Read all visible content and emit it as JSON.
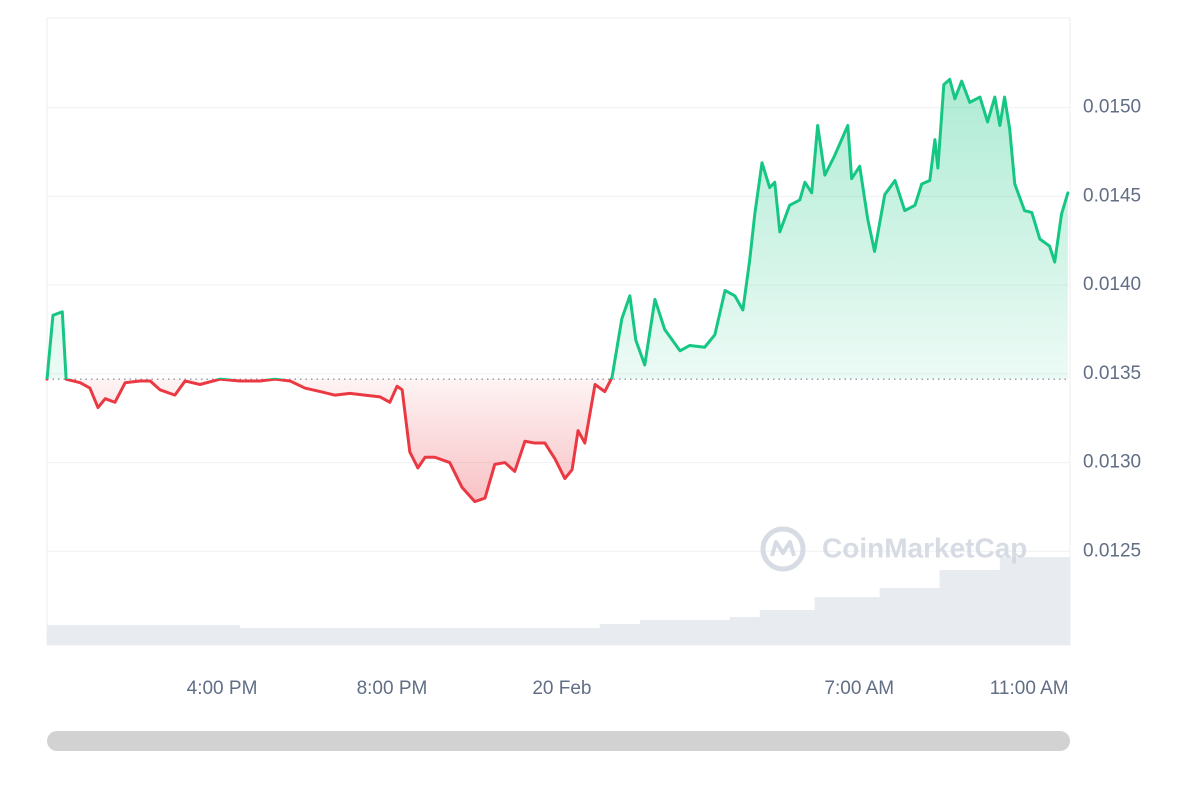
{
  "chart_data": {
    "type": "line",
    "watermark": "CoinMarketCap",
    "up_color": "#16c784",
    "down_color": "#ea3943",
    "baseline": 0.01347,
    "grid": true,
    "ylim": [
      0.012,
      0.0155
    ],
    "yticks": [
      0.0125,
      {
        "value": 0.013,
        "label": "0.0130"
      },
      0.0135,
      {
        "value": 0.014,
        "label": "0.0140"
      },
      0.0145,
      {
        "value": 0.015,
        "label": "0.0150"
      }
    ],
    "xlim": [
      -12.12,
      11.96
    ],
    "xticks": [
      {
        "value": -8,
        "label": "4:00 PM"
      },
      {
        "value": -4,
        "label": "8:00 PM"
      },
      {
        "value": 0,
        "label": "20 Feb"
      },
      {
        "value": 7,
        "label": "7:00 AM"
      },
      {
        "value": 11,
        "label": "11:00 AM"
      }
    ],
    "x": [
      -12.12,
      -11.98,
      -11.76,
      -11.67,
      -11.34,
      -11.11,
      -10.92,
      -10.75,
      -10.52,
      -10.28,
      -9.93,
      -9.69,
      -9.46,
      -9.11,
      -8.87,
      -8.52,
      -8.05,
      -7.58,
      -7.11,
      -6.75,
      -6.4,
      -6.05,
      -5.69,
      -5.34,
      -4.99,
      -4.64,
      -4.28,
      -4.05,
      -3.88,
      -3.76,
      -3.58,
      -3.39,
      -3.22,
      -2.99,
      -2.64,
      -2.35,
      -2.05,
      -1.81,
      -1.58,
      -1.34,
      -1.11,
      -0.87,
      -0.64,
      -0.4,
      -0.16,
      0.07,
      0.24,
      0.38,
      0.54,
      0.78,
      1.01,
      1.18,
      1.41,
      1.6,
      1.74,
      1.95,
      2.19,
      2.42,
      2.78,
      3.01,
      3.36,
      3.6,
      3.84,
      4.07,
      4.26,
      4.42,
      4.54,
      4.71,
      4.89,
      5.01,
      5.13,
      5.36,
      5.6,
      5.72,
      5.88,
      6.02,
      6.19,
      6.42,
      6.73,
      6.82,
      7.01,
      7.2,
      7.36,
      7.6,
      7.84,
      8.07,
      8.31,
      8.47,
      8.66,
      8.78,
      8.85,
      8.99,
      9.13,
      9.25,
      9.41,
      9.6,
      9.84,
      10.02,
      10.19,
      10.31,
      10.42,
      10.54,
      10.66,
      10.89,
      11.06,
      11.25,
      11.48,
      11.6,
      11.76,
      11.91
    ],
    "values": [
      0.01347,
      0.01383,
      0.01385,
      0.01347,
      0.01345,
      0.01342,
      0.01331,
      0.01336,
      0.01334,
      0.01345,
      0.01346,
      0.01346,
      0.01341,
      0.01338,
      0.01346,
      0.01344,
      0.01347,
      0.01346,
      0.01346,
      0.01347,
      0.01346,
      0.01342,
      0.0134,
      0.01338,
      0.01339,
      0.01338,
      0.01337,
      0.01334,
      0.01343,
      0.01341,
      0.01306,
      0.01297,
      0.01303,
      0.01303,
      0.013,
      0.01286,
      0.01278,
      0.0128,
      0.01299,
      0.013,
      0.01295,
      0.01312,
      0.01311,
      0.01311,
      0.01302,
      0.01291,
      0.01296,
      0.01318,
      0.01311,
      0.01344,
      0.0134,
      0.01348,
      0.01381,
      0.01394,
      0.01369,
      0.01355,
      0.01392,
      0.01375,
      0.01363,
      0.01366,
      0.01365,
      0.01372,
      0.01397,
      0.01394,
      0.01386,
      0.01414,
      0.0144,
      0.01469,
      0.01455,
      0.01458,
      0.0143,
      0.01445,
      0.01448,
      0.01458,
      0.01452,
      0.0149,
      0.01462,
      0.01473,
      0.0149,
      0.0146,
      0.01467,
      0.01437,
      0.01419,
      0.01451,
      0.01459,
      0.01442,
      0.01445,
      0.01457,
      0.01459,
      0.01482,
      0.01466,
      0.01513,
      0.01516,
      0.01505,
      0.01515,
      0.01503,
      0.01506,
      0.01492,
      0.01506,
      0.0149,
      0.01506,
      0.01488,
      0.01457,
      0.01442,
      0.01441,
      0.01426,
      0.01422,
      0.01413,
      0.0144,
      0.01452
    ],
    "volume": {
      "color": "#e8ebf0",
      "ylim": [
        0,
        100
      ],
      "x": [
        -12.12,
        -7.58,
        0.89,
        1.84,
        3.95,
        4.66,
        5.95,
        7.48,
        8.89,
        10.31
      ],
      "values": [
        20,
        17,
        21,
        25,
        28,
        35,
        48,
        57,
        75,
        88
      ]
    }
  }
}
